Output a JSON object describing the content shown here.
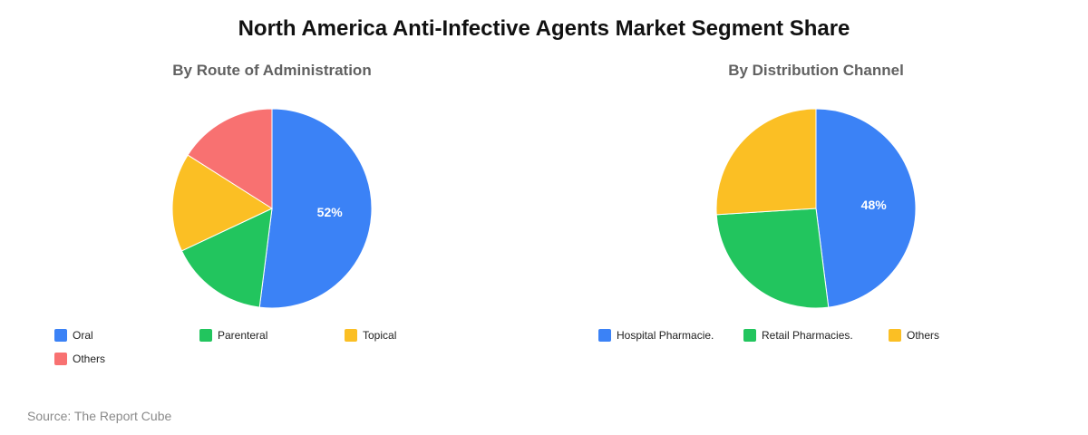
{
  "title": "North America Anti-Infective Agents Market Segment Share",
  "source": "Source: The Report Cube",
  "chart_data": [
    {
      "type": "pie",
      "title": "By Route of Administration",
      "slices": [
        {
          "label": "Oral",
          "value": 52,
          "color": "#3B82F6",
          "show_label": true,
          "display": "52%"
        },
        {
          "label": "Parenteral",
          "value": 16,
          "color": "#22C55E",
          "show_label": false
        },
        {
          "label": "Topical",
          "value": 16,
          "color": "#FBBF24",
          "show_label": false
        },
        {
          "label": "Others",
          "value": 16,
          "color": "#F87171",
          "show_label": false
        }
      ],
      "legend_position": "bottom"
    },
    {
      "type": "pie",
      "title": "By Distribution Channel",
      "slices": [
        {
          "label": "Hospital Pharmacie.",
          "value": 48,
          "color": "#3B82F6",
          "show_label": true,
          "display": "48%"
        },
        {
          "label": "Retail Pharmacies.",
          "value": 26,
          "color": "#22C55E",
          "show_label": false
        },
        {
          "label": "Others",
          "value": 26,
          "color": "#FBBF24",
          "show_label": false
        }
      ],
      "legend_position": "bottom"
    }
  ]
}
